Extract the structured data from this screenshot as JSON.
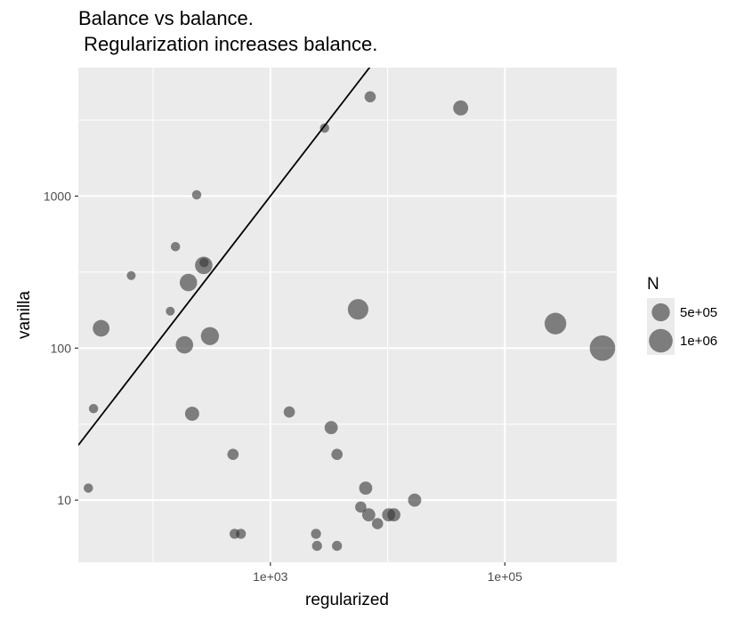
{
  "chart_data": {
    "type": "scatter",
    "title": "Balance vs balance.",
    "subtitle": " Regularization increases balance.",
    "xlabel": "regularized",
    "ylabel": "vanilla",
    "x_scale": "log10",
    "y_scale": "log10",
    "xlim": [
      23,
      900000
    ],
    "ylim": [
      3.9,
      7000
    ],
    "x_ticks": [
      {
        "value": 1000,
        "label": "1e+03"
      },
      {
        "value": 100000,
        "label": "1e+05"
      }
    ],
    "y_ticks": [
      {
        "value": 10,
        "label": "10"
      },
      {
        "value": 100,
        "label": "100"
      },
      {
        "value": 1000,
        "label": "1000"
      }
    ],
    "reference_line": {
      "slope": 1,
      "intercept": 0,
      "color": "#000000"
    },
    "point_color": "#333333",
    "point_alpha": 0.6,
    "size_legend": {
      "title": "N",
      "entries": [
        {
          "label": "5e+05",
          "n": 500000
        },
        {
          "label": "1e+06",
          "n": 1000000
        }
      ]
    },
    "points": [
      {
        "x": 28,
        "y": 12,
        "n": 60000
      },
      {
        "x": 31,
        "y": 40,
        "n": 60000
      },
      {
        "x": 36,
        "y": 135,
        "n": 400000
      },
      {
        "x": 65,
        "y": 300,
        "n": 50000
      },
      {
        "x": 140,
        "y": 175,
        "n": 50000
      },
      {
        "x": 155,
        "y": 465,
        "n": 60000
      },
      {
        "x": 185,
        "y": 105,
        "n": 450000
      },
      {
        "x": 200,
        "y": 270,
        "n": 450000
      },
      {
        "x": 215,
        "y": 37,
        "n": 250000
      },
      {
        "x": 235,
        "y": 1020,
        "n": 60000
      },
      {
        "x": 270,
        "y": 350,
        "n": 450000
      },
      {
        "x": 272,
        "y": 365,
        "n": 60000
      },
      {
        "x": 305,
        "y": 120,
        "n": 500000
      },
      {
        "x": 480,
        "y": 20,
        "n": 120000
      },
      {
        "x": 495,
        "y": 6,
        "n": 80000
      },
      {
        "x": 560,
        "y": 6,
        "n": 80000
      },
      {
        "x": 1450,
        "y": 38,
        "n": 120000
      },
      {
        "x": 2450,
        "y": 6,
        "n": 80000
      },
      {
        "x": 2500,
        "y": 5,
        "n": 80000
      },
      {
        "x": 2900,
        "y": 2800,
        "n": 60000
      },
      {
        "x": 3300,
        "y": 30,
        "n": 200000
      },
      {
        "x": 3700,
        "y": 20,
        "n": 120000
      },
      {
        "x": 3700,
        "y": 5,
        "n": 80000
      },
      {
        "x": 5600,
        "y": 180,
        "n": 700000
      },
      {
        "x": 5900,
        "y": 9,
        "n": 120000
      },
      {
        "x": 6500,
        "y": 12,
        "n": 200000
      },
      {
        "x": 6900,
        "y": 8,
        "n": 200000
      },
      {
        "x": 7100,
        "y": 4500,
        "n": 120000
      },
      {
        "x": 8200,
        "y": 7,
        "n": 120000
      },
      {
        "x": 10200,
        "y": 8,
        "n": 200000
      },
      {
        "x": 11300,
        "y": 8,
        "n": 200000
      },
      {
        "x": 17000,
        "y": 10,
        "n": 200000
      },
      {
        "x": 42000,
        "y": 3800,
        "n": 300000
      },
      {
        "x": 270000,
        "y": 145,
        "n": 800000
      },
      {
        "x": 680000,
        "y": 100,
        "n": 1200000
      }
    ]
  }
}
